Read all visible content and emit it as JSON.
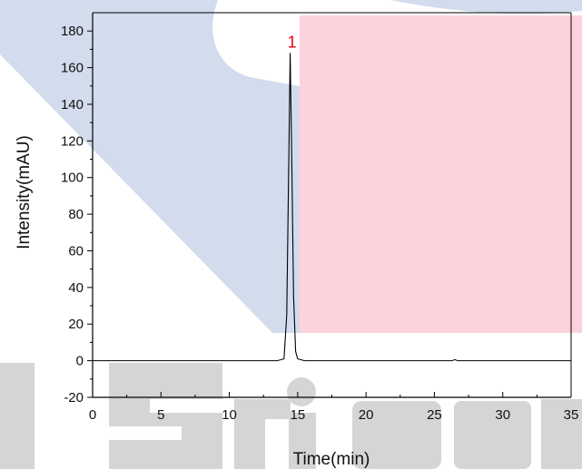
{
  "chart_data": {
    "type": "line",
    "xlabel": "Time(min)",
    "ylabel": "Intensity(mAU)",
    "xlim": [
      0,
      35
    ],
    "ylim": [
      -20,
      190
    ],
    "x_ticks": [
      0,
      5,
      10,
      15,
      20,
      25,
      30,
      35
    ],
    "y_ticks": [
      -20,
      0,
      20,
      40,
      60,
      80,
      100,
      120,
      140,
      160,
      180
    ],
    "grid": false,
    "series": [
      {
        "color": "#000000",
        "x": [
          0,
          5,
          10,
          13.5,
          14.0,
          14.2,
          14.35,
          14.45,
          14.55,
          14.7,
          14.85,
          15.0,
          15.5,
          20,
          26.3,
          26.5,
          26.7,
          30,
          35
        ],
        "y": [
          0,
          0,
          0,
          0,
          1,
          25,
          110,
          168,
          120,
          35,
          5,
          1,
          0,
          0,
          0,
          0.6,
          0,
          0,
          0
        ]
      }
    ],
    "annotations": [
      {
        "text": "1",
        "x": 14.45,
        "y": 172,
        "color": "#e8001c"
      }
    ]
  },
  "colors": {
    "watermark_blue": "#d2dced",
    "watermark_pink": "#fcd2dc",
    "watermark_gray": "#d5d5d5"
  }
}
